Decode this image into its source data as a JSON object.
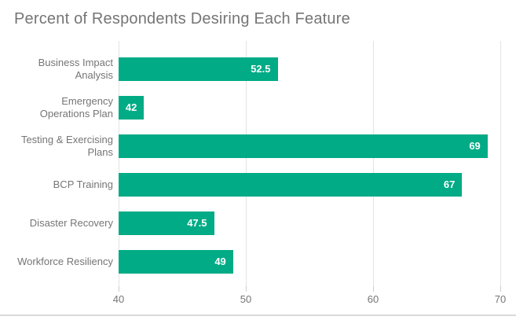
{
  "chart_data": {
    "type": "bar",
    "orientation": "horizontal",
    "title": "Percent of Respondents Desiring Each Feature",
    "categories": [
      "Business Impact Analysis",
      "Emergency Operations Plan",
      "Testing & Exercising Plans",
      "BCP Training",
      "Disaster Recovery",
      "Workforce Resiliency"
    ],
    "values": [
      52.5,
      42,
      69,
      67,
      47.5,
      49
    ],
    "value_labels": [
      "52.5",
      "42",
      "69",
      "67",
      "47.5",
      "49"
    ],
    "x_ticks": [
      40,
      50,
      60,
      70
    ],
    "xlim": [
      40,
      71.2
    ],
    "xlabel": "",
    "ylabel": "",
    "grid": true,
    "legend": "none",
    "colors": {
      "bar": "#00AB85",
      "grid": "#e3e3e3",
      "tick_mark": "#cccccc",
      "axis_text": "#757575",
      "title_text": "#757575",
      "value_text": "#ffffff",
      "bottom_border": "#d9d9d9"
    }
  }
}
